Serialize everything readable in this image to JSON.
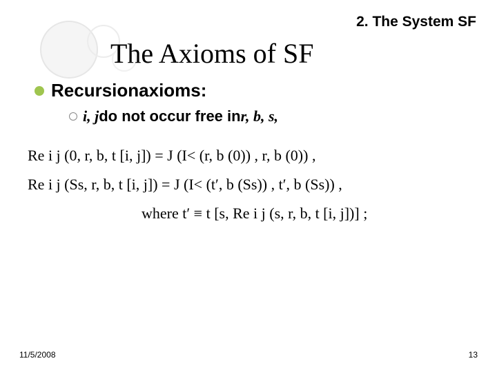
{
  "section_label": "2. The System SF",
  "title": "The Axioms of SF",
  "bullet": {
    "prefix": "Recursion",
    "suffix": " axioms:"
  },
  "sub": {
    "vars": "i, j",
    "mid": " do not occur free in ",
    "tail": "r, b, s,"
  },
  "math": {
    "line1": "Re i j (0, r, b, t [i, j]) = J (I< (r, b (0)) , r, b (0)) ,",
    "line2": "Re i j (Ss, r, b, t [i, j]) = J (I< (t′, b (Ss)) , t′, b (Ss)) ,",
    "line3": "where t′ ≡ t [s, Re i j (s, r, b, t [i, j])] ;"
  },
  "footer": {
    "date": "11/5/2008",
    "page": "13"
  },
  "colors": {
    "bullet_disc": "#9fc54f",
    "ring_border": "#888888",
    "background": "#ffffff"
  },
  "fontsizes": {
    "section_label": 21,
    "title": 40,
    "bullet": 26,
    "sub": 22,
    "math": 22,
    "footer": 12
  }
}
